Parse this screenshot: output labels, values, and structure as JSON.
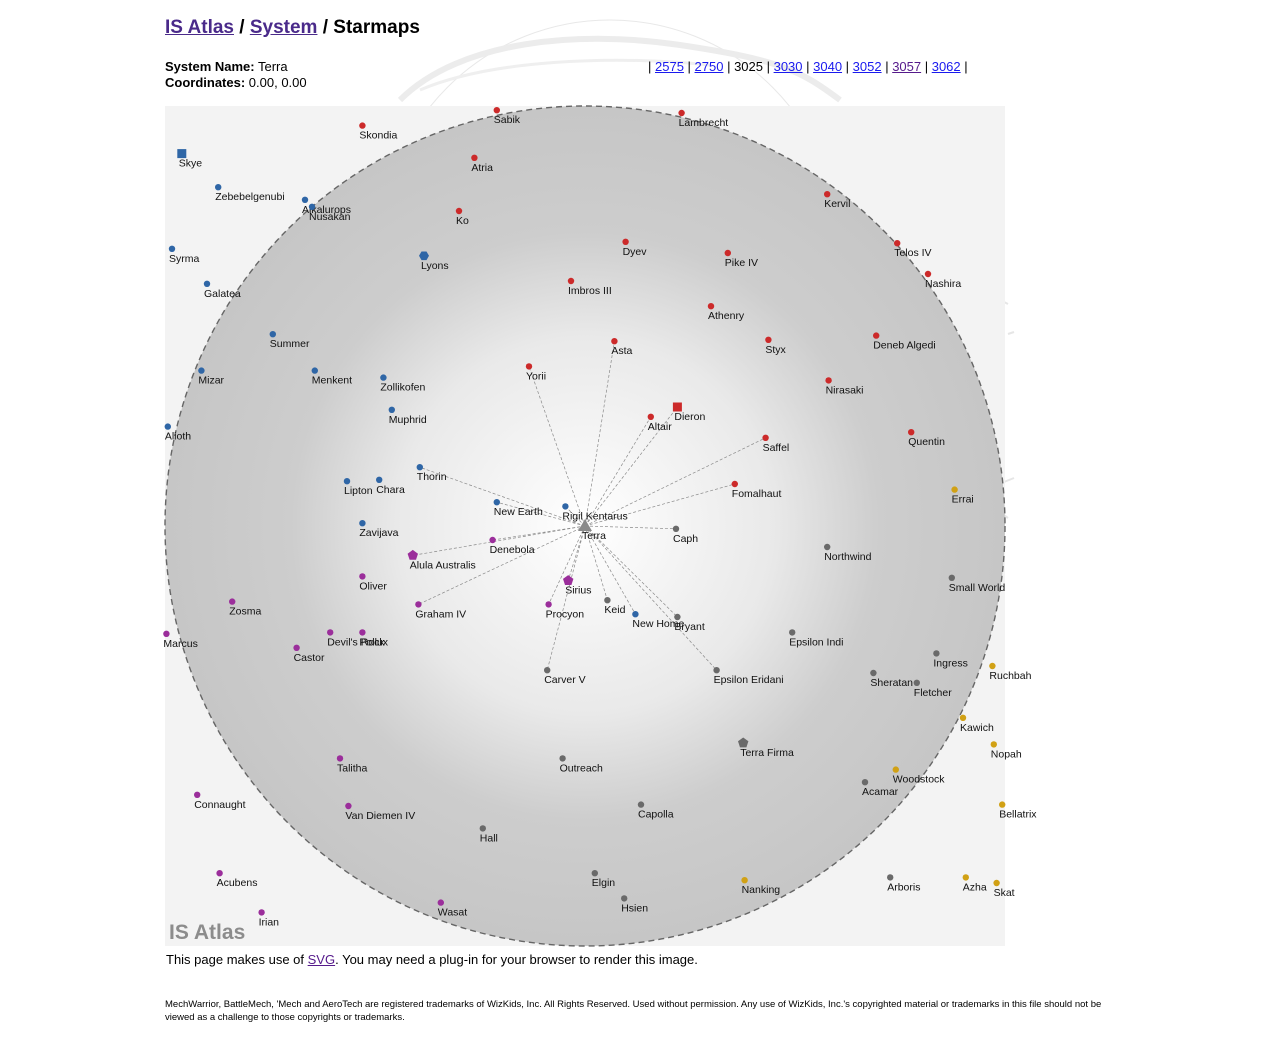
{
  "breadcrumb": {
    "root": "IS Atlas",
    "sep1": " / ",
    "system": "System",
    "sep2": " / ",
    "current": "Starmaps"
  },
  "system": {
    "name_label": "System Name:",
    "name": "Terra",
    "coord_label": "Coordinates:",
    "coords": "0.00, 0.00"
  },
  "years": {
    "current": "3025",
    "links": [
      "2575",
      "2750",
      "3025",
      "3030",
      "3040",
      "3052",
      "3057",
      "3062"
    ],
    "visited": [
      "3057"
    ]
  },
  "colors": {
    "red": "#cc2a2a",
    "blue": "#2f66a6",
    "purple": "#9b2e9b",
    "gray": "#6a6a6a",
    "gold": "#d1a115",
    "map_bg": "#f3f3f3",
    "link": "#1a1aee",
    "visited_link": "#551a8b"
  },
  "map": {
    "watermark": "IS Atlas",
    "center": {
      "name": "Terra",
      "x": 0,
      "y": 0
    },
    "range_radius": 30,
    "jumps": [
      "Asta",
      "Yorii",
      "Altair",
      "Dieron",
      "Saffel",
      "Fomalhaut",
      "Caph",
      "Bryant",
      "Epsilon Eridani",
      "Keid",
      "Carver V",
      "Procyon",
      "Sirius",
      "Graham IV",
      "Alula Australis",
      "Denebola",
      "New Earth",
      "Thorin",
      "Rigil Kentarus",
      "New Home"
    ],
    "systems": [
      {
        "name": "Sabik",
        "x": -6.3,
        "y": 29.7,
        "c": "red",
        "shape": "dot"
      },
      {
        "name": "Lambrecht",
        "x": 6.9,
        "y": 29.5,
        "c": "red",
        "shape": "dot"
      },
      {
        "name": "Skondia",
        "x": -15.9,
        "y": 28.6,
        "c": "red",
        "shape": "dot"
      },
      {
        "name": "Atria",
        "x": -7.9,
        "y": 26.3,
        "c": "red",
        "shape": "dot"
      },
      {
        "name": "Skye",
        "x": -28.8,
        "y": 26.6,
        "c": "blue",
        "shape": "square"
      },
      {
        "name": "Zebebelgenubi",
        "x": -26.2,
        "y": 24.2,
        "c": "blue",
        "shape": "dot"
      },
      {
        "name": "Alkalurops",
        "x": -20.0,
        "y": 23.3,
        "c": "blue",
        "shape": "dot"
      },
      {
        "name": "Nusakan",
        "x": -19.5,
        "y": 22.8,
        "c": "blue",
        "shape": "dot"
      },
      {
        "name": "Kervil",
        "x": 17.3,
        "y": 23.7,
        "c": "red",
        "shape": "dot"
      },
      {
        "name": "Ko",
        "x": -9.0,
        "y": 22.5,
        "c": "red",
        "shape": "dot"
      },
      {
        "name": "Dyev",
        "x": 2.9,
        "y": 20.3,
        "c": "red",
        "shape": "dot"
      },
      {
        "name": "Telos IV",
        "x": 22.3,
        "y": 20.2,
        "c": "red",
        "shape": "dot"
      },
      {
        "name": "Syrma",
        "x": -29.5,
        "y": 19.8,
        "c": "blue",
        "shape": "dot"
      },
      {
        "name": "Lyons",
        "x": -11.5,
        "y": 19.3,
        "c": "blue",
        "shape": "hex"
      },
      {
        "name": "Pike IV",
        "x": 10.2,
        "y": 19.5,
        "c": "red",
        "shape": "dot"
      },
      {
        "name": "Nashira",
        "x": 24.5,
        "y": 18.0,
        "c": "red",
        "shape": "dot"
      },
      {
        "name": "Galatea",
        "x": -27.0,
        "y": 17.3,
        "c": "blue",
        "shape": "dot"
      },
      {
        "name": "Imbros III",
        "x": -1.0,
        "y": 17.5,
        "c": "red",
        "shape": "dot"
      },
      {
        "name": "Athenry",
        "x": 9.0,
        "y": 15.7,
        "c": "red",
        "shape": "dot"
      },
      {
        "name": "Summer",
        "x": -22.3,
        "y": 13.7,
        "c": "blue",
        "shape": "dot"
      },
      {
        "name": "Asta",
        "x": 2.1,
        "y": 13.2,
        "c": "red",
        "shape": "dot"
      },
      {
        "name": "Styx",
        "x": 13.1,
        "y": 13.3,
        "c": "red",
        "shape": "dot"
      },
      {
        "name": "Deneb Algedi",
        "x": 20.8,
        "y": 13.6,
        "c": "red",
        "shape": "dot"
      },
      {
        "name": "Mizar",
        "x": -27.4,
        "y": 11.1,
        "c": "blue",
        "shape": "dot"
      },
      {
        "name": "Menkent",
        "x": -19.3,
        "y": 11.1,
        "c": "blue",
        "shape": "dot"
      },
      {
        "name": "Yorii",
        "x": -4.0,
        "y": 11.4,
        "c": "red",
        "shape": "dot"
      },
      {
        "name": "Zollikofen",
        "x": -14.4,
        "y": 10.6,
        "c": "blue",
        "shape": "dot"
      },
      {
        "name": "Nirasaki",
        "x": 17.4,
        "y": 10.4,
        "c": "red",
        "shape": "dot"
      },
      {
        "name": "Muphrid",
        "x": -13.8,
        "y": 8.3,
        "c": "blue",
        "shape": "dot"
      },
      {
        "name": "Dieron",
        "x": 6.6,
        "y": 8.5,
        "c": "red",
        "shape": "square"
      },
      {
        "name": "Altair",
        "x": 4.7,
        "y": 7.8,
        "c": "red",
        "shape": "dot"
      },
      {
        "name": "Alioth",
        "x": -29.8,
        "y": 7.1,
        "c": "blue",
        "shape": "dot"
      },
      {
        "name": "Saffel",
        "x": 12.9,
        "y": 6.3,
        "c": "red",
        "shape": "dot"
      },
      {
        "name": "Quentin",
        "x": 23.3,
        "y": 6.7,
        "c": "red",
        "shape": "dot"
      },
      {
        "name": "Thorin",
        "x": -11.8,
        "y": 4.2,
        "c": "blue",
        "shape": "dot"
      },
      {
        "name": "Lipton",
        "x": -17.0,
        "y": 3.2,
        "c": "blue",
        "shape": "dot"
      },
      {
        "name": "Chara",
        "x": -14.7,
        "y": 3.3,
        "c": "blue",
        "shape": "dot"
      },
      {
        "name": "Fomalhaut",
        "x": 10.7,
        "y": 3.0,
        "c": "red",
        "shape": "dot"
      },
      {
        "name": "Errai",
        "x": 26.4,
        "y": 2.6,
        "c": "gold",
        "shape": "dot"
      },
      {
        "name": "New Earth",
        "x": -6.3,
        "y": 1.7,
        "c": "blue",
        "shape": "dot"
      },
      {
        "name": "Rigil Kentarus",
        "x": -1.4,
        "y": 1.4,
        "c": "blue",
        "shape": "dot"
      },
      {
        "name": "Zavijava",
        "x": -15.9,
        "y": 0.2,
        "c": "blue",
        "shape": "dot"
      },
      {
        "name": "Terra",
        "x": 0.0,
        "y": 0.0,
        "c": "gray",
        "shape": "triangle"
      },
      {
        "name": "Caph",
        "x": 6.5,
        "y": -0.2,
        "c": "gray",
        "shape": "dot"
      },
      {
        "name": "Denebola",
        "x": -6.6,
        "y": -1.0,
        "c": "purple",
        "shape": "dot"
      },
      {
        "name": "Northwind",
        "x": 17.3,
        "y": -1.5,
        "c": "gray",
        "shape": "dot"
      },
      {
        "name": "Alula Australis",
        "x": -12.3,
        "y": -2.1,
        "c": "purple",
        "shape": "pent"
      },
      {
        "name": "Oliver",
        "x": -15.9,
        "y": -3.6,
        "c": "purple",
        "shape": "dot"
      },
      {
        "name": "Small World",
        "x": 26.2,
        "y": -3.7,
        "c": "gray",
        "shape": "dot"
      },
      {
        "name": "Sirius",
        "x": -1.2,
        "y": -3.9,
        "c": "purple",
        "shape": "pent"
      },
      {
        "name": "Keid",
        "x": 1.6,
        "y": -5.3,
        "c": "gray",
        "shape": "dot"
      },
      {
        "name": "Zosma",
        "x": -25.2,
        "y": -5.4,
        "c": "purple",
        "shape": "dot"
      },
      {
        "name": "Graham IV",
        "x": -11.9,
        "y": -5.6,
        "c": "purple",
        "shape": "dot"
      },
      {
        "name": "Procyon",
        "x": -2.6,
        "y": -5.6,
        "c": "purple",
        "shape": "dot"
      },
      {
        "name": "New Home",
        "x": 3.6,
        "y": -6.3,
        "c": "blue",
        "shape": "dot"
      },
      {
        "name": "Bryant",
        "x": 6.6,
        "y": -6.5,
        "c": "gray",
        "shape": "dot"
      },
      {
        "name": "Marcus",
        "x": -29.9,
        "y": -7.7,
        "c": "purple",
        "shape": "dot"
      },
      {
        "name": "Devil's Rock",
        "x": -18.2,
        "y": -7.6,
        "c": "purple",
        "shape": "dot"
      },
      {
        "name": "Pollux",
        "x": -15.9,
        "y": -7.6,
        "c": "purple",
        "shape": "dot"
      },
      {
        "name": "Epsilon Indi",
        "x": 14.8,
        "y": -7.6,
        "c": "gray",
        "shape": "dot"
      },
      {
        "name": "Castor",
        "x": -20.6,
        "y": -8.7,
        "c": "purple",
        "shape": "dot"
      },
      {
        "name": "Ingress",
        "x": 25.1,
        "y": -9.1,
        "c": "gray",
        "shape": "dot"
      },
      {
        "name": "Carver V",
        "x": -2.7,
        "y": -10.3,
        "c": "gray",
        "shape": "dot"
      },
      {
        "name": "Epsilon Eridani",
        "x": 9.4,
        "y": -10.3,
        "c": "gray",
        "shape": "dot"
      },
      {
        "name": "Sheratan",
        "x": 20.6,
        "y": -10.5,
        "c": "gray",
        "shape": "dot"
      },
      {
        "name": "Fletcher",
        "x": 23.7,
        "y": -11.2,
        "c": "gray",
        "shape": "dot"
      },
      {
        "name": "Ruchbah",
        "x": 29.1,
        "y": -10.0,
        "c": "gold",
        "shape": "dot"
      },
      {
        "name": "Kawich",
        "x": 27.0,
        "y": -13.7,
        "c": "gold",
        "shape": "dot"
      },
      {
        "name": "Nopah",
        "x": 29.2,
        "y": -15.6,
        "c": "gold",
        "shape": "dot"
      },
      {
        "name": "Terra Firma",
        "x": 11.3,
        "y": -15.5,
        "c": "gray",
        "shape": "pent"
      },
      {
        "name": "Talitha",
        "x": -17.5,
        "y": -16.6,
        "c": "purple",
        "shape": "dot"
      },
      {
        "name": "Outreach",
        "x": -1.6,
        "y": -16.6,
        "c": "gray",
        "shape": "dot"
      },
      {
        "name": "Woodstock",
        "x": 22.2,
        "y": -17.4,
        "c": "gold",
        "shape": "dot"
      },
      {
        "name": "Acamar",
        "x": 20.0,
        "y": -18.3,
        "c": "gray",
        "shape": "dot"
      },
      {
        "name": "Connaught",
        "x": -27.7,
        "y": -19.2,
        "c": "purple",
        "shape": "dot"
      },
      {
        "name": "Van Diemen IV",
        "x": -16.9,
        "y": -20.0,
        "c": "purple",
        "shape": "dot"
      },
      {
        "name": "Capolla",
        "x": 4.0,
        "y": -19.9,
        "c": "gray",
        "shape": "dot"
      },
      {
        "name": "Bellatrix",
        "x": 29.8,
        "y": -19.9,
        "c": "gold",
        "shape": "dot"
      },
      {
        "name": "Hall",
        "x": -7.3,
        "y": -21.6,
        "c": "gray",
        "shape": "dot"
      },
      {
        "name": "Acubens",
        "x": -26.1,
        "y": -24.8,
        "c": "purple",
        "shape": "dot"
      },
      {
        "name": "Elgin",
        "x": 0.7,
        "y": -24.8,
        "c": "gray",
        "shape": "dot"
      },
      {
        "name": "Nanking",
        "x": 11.4,
        "y": -25.3,
        "c": "gold",
        "shape": "dot"
      },
      {
        "name": "Arboris",
        "x": 21.8,
        "y": -25.1,
        "c": "gray",
        "shape": "dot"
      },
      {
        "name": "Azha",
        "x": 27.2,
        "y": -25.1,
        "c": "gold",
        "shape": "dot"
      },
      {
        "name": "Skat",
        "x": 29.4,
        "y": -25.5,
        "c": "gold",
        "shape": "dot"
      },
      {
        "name": "Hsien",
        "x": 2.8,
        "y": -26.6,
        "c": "gray",
        "shape": "dot"
      },
      {
        "name": "Wasat",
        "x": -10.3,
        "y": -26.9,
        "c": "purple",
        "shape": "dot"
      },
      {
        "name": "Irian",
        "x": -23.1,
        "y": -27.6,
        "c": "purple",
        "shape": "dot"
      }
    ]
  },
  "svg_note": {
    "pre": "This page makes use of ",
    "link": "SVG",
    "post": ". You may need a plug-in for your browser to render this image."
  },
  "legal": "MechWarrior, BattleMech, 'Mech and AeroTech are registered trademarks of WizKids, Inc. All Rights Reserved. Used without permission. Any use of WizKids, Inc.'s copyrighted material or trademarks in this file should not be viewed as a challenge to those copyrights or trademarks."
}
